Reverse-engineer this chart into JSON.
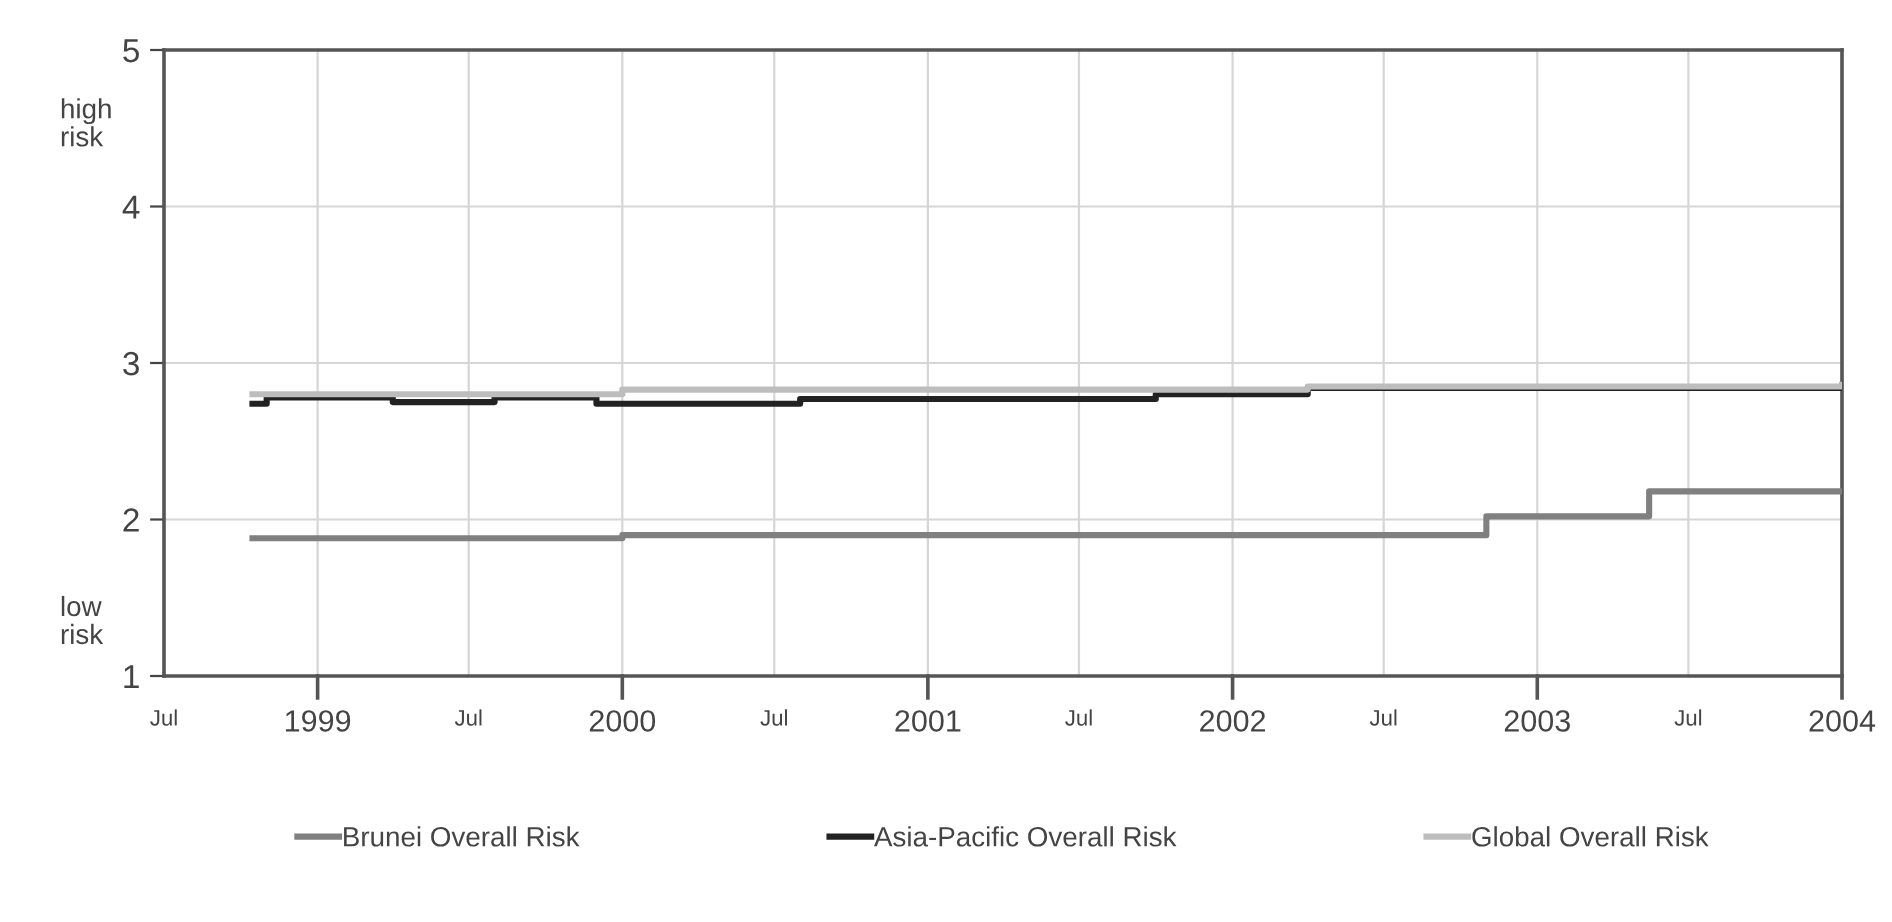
{
  "chart_data": {
    "type": "step",
    "annotations": [
      "high\nrisk",
      "low\nrisk"
    ],
    "series": [
      {
        "name": "Brunei Overall Risk",
        "color": "#808080",
        "x": [
          "1998-10-15",
          "2000-01-01",
          "2002-11-01",
          "2003-05-15",
          "2004-01-01"
        ],
        "values": [
          1.88,
          1.9,
          2.02,
          2.18,
          2.18
        ]
      },
      {
        "name": "Asia-Pacific Overall Risk",
        "color": "#222222",
        "x": [
          "1998-10-15",
          "1998-11-01",
          "1999-04-01",
          "1999-08-01",
          "1999-12-01",
          "2000-08-01",
          "2001-10-01",
          "2002-04-01",
          "2004-01-01"
        ],
        "values": [
          2.74,
          2.78,
          2.75,
          2.78,
          2.74,
          2.77,
          2.8,
          2.84,
          2.84
        ]
      },
      {
        "name": "Global Overall Risk",
        "color": "#bdbdbd",
        "x": [
          "1998-10-15",
          "2000-01-01",
          "2002-04-01",
          "2004-01-01"
        ],
        "values": [
          2.8,
          2.83,
          2.85,
          2.86
        ]
      }
    ],
    "xlim": [
      "1998-07-01",
      "2004-01-01"
    ],
    "xticks": [
      {
        "value": "1998-07-01",
        "label": "Jul"
      },
      {
        "value": "1999-01-01",
        "label": "1999"
      },
      {
        "value": "1999-07-01",
        "label": "Jul"
      },
      {
        "value": "2000-01-01",
        "label": "2000"
      },
      {
        "value": "2000-07-01",
        "label": "Jul"
      },
      {
        "value": "2001-01-01",
        "label": "2001"
      },
      {
        "value": "2001-07-01",
        "label": "Jul"
      },
      {
        "value": "2002-01-01",
        "label": "2002"
      },
      {
        "value": "2002-07-01",
        "label": "Jul"
      },
      {
        "value": "2003-01-01",
        "label": "2003"
      },
      {
        "value": "2003-07-01",
        "label": "Jul"
      },
      {
        "value": "2004-01-01",
        "label": "2004"
      }
    ],
    "ylim": [
      1,
      5
    ],
    "yticks": [
      1,
      2,
      3,
      4,
      5
    ],
    "grid": true,
    "legend": "bottom",
    "line_style": "solid",
    "marker": "none"
  }
}
